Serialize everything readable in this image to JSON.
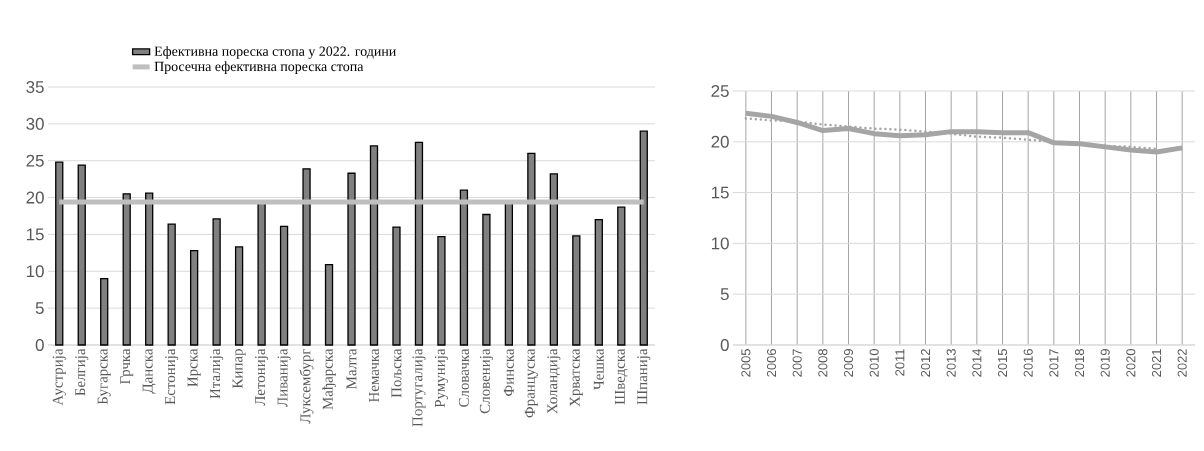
{
  "chart_data": [
    {
      "type": "bar",
      "categories": [
        "Аустрија",
        "Белгија",
        "Бугарска",
        "Грчка",
        "Данска",
        "Естонија",
        "Ирска",
        "Италија",
        "Кипар",
        "Летонија",
        "Ливанија",
        "Луксембург",
        "Мађарска",
        "Малта",
        "Немачка",
        "Пољска",
        "Португалија",
        "Румунија",
        "Словачка",
        "Словенија",
        "Финска",
        "Француска",
        "Холандија",
        "Хрватска",
        "Чешка",
        "Шведска",
        "Шпанија"
      ],
      "series": [
        {
          "name": "Ефективна пореска стопа у 2022. години",
          "color": "#808080",
          "values": [
            24.8,
            24.4,
            9.0,
            20.5,
            20.6,
            16.4,
            12.8,
            17.1,
            13.3,
            19.5,
            16.1,
            23.9,
            10.9,
            23.3,
            27.0,
            16.0,
            27.5,
            14.7,
            21.0,
            17.7,
            19.3,
            26.0,
            23.2,
            14.8,
            17.0,
            18.7,
            29.0
          ]
        },
        {
          "name": "Просечна ефективна пореска стопа",
          "type": "line",
          "color": "#bfbfbf",
          "values": [
            19.4,
            19.4,
            19.4,
            19.4,
            19.4,
            19.4,
            19.4,
            19.4,
            19.4,
            19.4,
            19.4,
            19.4,
            19.4,
            19.4,
            19.4,
            19.4,
            19.4,
            19.4,
            19.4,
            19.4,
            19.4,
            19.4,
            19.4,
            19.4,
            19.4,
            19.4,
            19.4
          ]
        }
      ],
      "ylim": [
        0,
        35
      ],
      "yticks": [
        0,
        5,
        10,
        15,
        20,
        25,
        30,
        35
      ],
      "grid": "y",
      "legend": "top"
    },
    {
      "type": "line",
      "categories": [
        "2005",
        "2006",
        "2007",
        "2008",
        "2009",
        "2010",
        "2011",
        "2012",
        "2013",
        "2014",
        "2015",
        "2016",
        "2017",
        "2018",
        "2019",
        "2020",
        "2021",
        "2022"
      ],
      "series": [
        {
          "color": "#a5a5a5",
          "values": [
            22.8,
            22.5,
            21.9,
            21.1,
            21.3,
            20.8,
            20.6,
            20.7,
            21.0,
            21.0,
            20.9,
            20.9,
            19.9,
            19.8,
            19.5,
            19.2,
            19.0,
            19.4
          ]
        },
        {
          "color": "#a5a5a5",
          "line_style": "dotted",
          "values": [
            22.3,
            22.1,
            22.0,
            21.7,
            21.5,
            21.3,
            21.2,
            21.0,
            20.8,
            20.5,
            20.4,
            20.2,
            20.0,
            19.8,
            19.6,
            19.5,
            19.3,
            null
          ]
        }
      ],
      "ylim": [
        0,
        25
      ],
      "yticks": [
        0,
        5,
        10,
        15,
        20,
        25
      ],
      "grid": true
    }
  ]
}
